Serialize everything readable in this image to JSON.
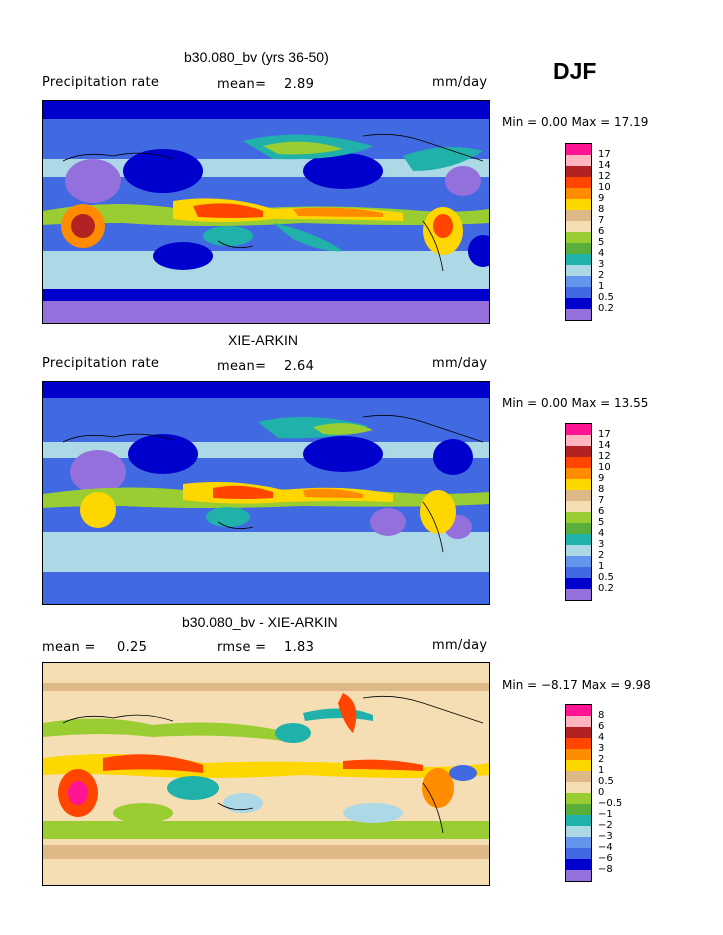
{
  "season": "DJF",
  "panels": [
    {
      "title": "b30.080_bv (yrs 36-50)",
      "left_label": "Precipitation rate",
      "mid_label": "mean=",
      "mid_value": "2.89",
      "unit": "mm/day",
      "range_text": "Min =    0.00 Max =   17.19",
      "colorbar": {
        "labels": [
          "17",
          "14",
          "12",
          "10",
          "9",
          "8",
          "7",
          "6",
          "5",
          "4",
          "3",
          "2",
          "1",
          "0.5",
          "0.2"
        ],
        "colors": [
          "#ff1493",
          "#ffb6c1",
          "#b22222",
          "#ff4500",
          "#ff8c00",
          "#ffd700",
          "#deb887",
          "#f5deb3",
          "#9acd32",
          "#5aae3c",
          "#20b2aa",
          "#add8e6",
          "#6495ed",
          "#4169e1",
          "#0000cd",
          "#9370db"
        ]
      }
    },
    {
      "title": "XIE-ARKIN",
      "left_label": "Precipitation rate",
      "mid_label": "mean=",
      "mid_value": "2.64",
      "unit": "mm/day",
      "range_text": "Min =    0.00 Max =   13.55",
      "colorbar": {
        "labels": [
          "17",
          "14",
          "12",
          "10",
          "9",
          "8",
          "7",
          "6",
          "5",
          "4",
          "3",
          "2",
          "1",
          "0.5",
          "0.2"
        ],
        "colors": [
          "#ff1493",
          "#ffb6c1",
          "#b22222",
          "#ff4500",
          "#ff8c00",
          "#ffd700",
          "#deb887",
          "#f5deb3",
          "#9acd32",
          "#5aae3c",
          "#20b2aa",
          "#add8e6",
          "#6495ed",
          "#4169e1",
          "#0000cd",
          "#9370db"
        ]
      }
    },
    {
      "title": "b30.080_bv - XIE-ARKIN",
      "left_label": "mean =",
      "left_value": "0.25",
      "mid_label": "rmse =",
      "mid_value": "1.83",
      "unit": "mm/day",
      "range_text": "Min =  −8.17 Max =    9.98",
      "colorbar": {
        "labels": [
          "8",
          "6",
          "4",
          "3",
          "2",
          "1",
          "0.5",
          "0",
          "−0.5",
          "−1",
          "−2",
          "−3",
          "−4",
          "−6",
          "−8"
        ],
        "colors": [
          "#ff1493",
          "#ffb6c1",
          "#b22222",
          "#ff4500",
          "#ff8c00",
          "#ffd700",
          "#deb887",
          "#f5deb3",
          "#9acd32",
          "#5aae3c",
          "#20b2aa",
          "#add8e6",
          "#6495ed",
          "#4169e1",
          "#0000cd",
          "#9370db"
        ]
      }
    }
  ]
}
